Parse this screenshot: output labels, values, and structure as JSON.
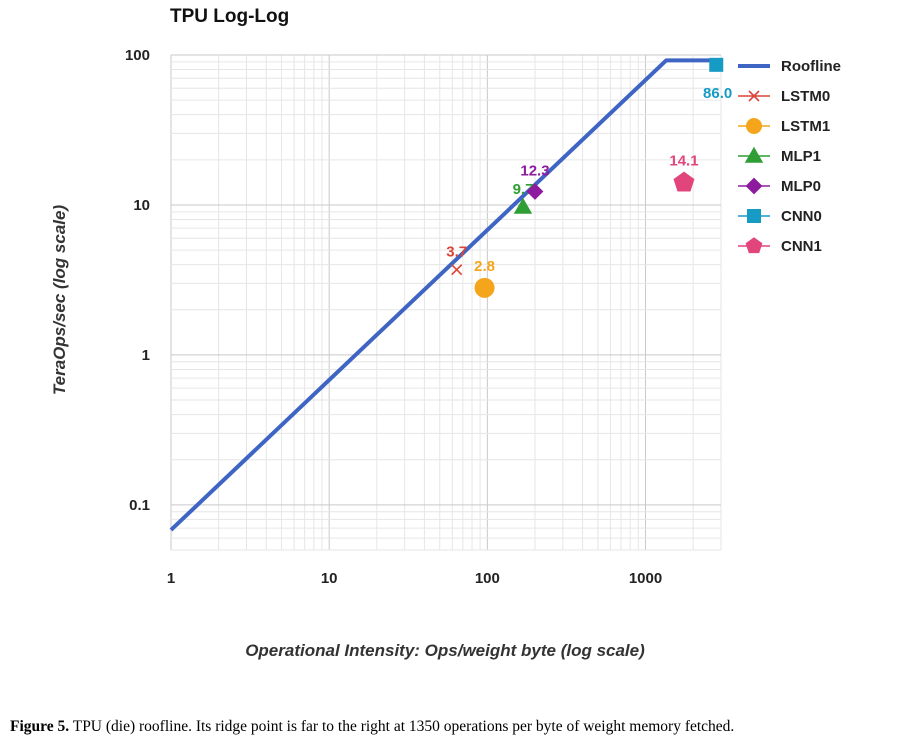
{
  "chart_data": {
    "type": "line",
    "title": "TPU Log-Log",
    "xlabel": "Operational Intensity: Ops/weight byte (log scale)",
    "ylabel": "TeraOps/sec (log scale)",
    "xscale": "log",
    "yscale": "log",
    "xlim": [
      1,
      3000
    ],
    "ylim": [
      0.05,
      100
    ],
    "xticks": [
      1,
      10,
      100,
      1000
    ],
    "xtick_labels": [
      "1",
      "10",
      "100",
      "1000"
    ],
    "yticks": [
      0.1,
      1,
      10,
      100
    ],
    "ytick_labels": [
      "0.1",
      "1",
      "10",
      "100"
    ],
    "grid": true,
    "legend_position": "right",
    "roofline": {
      "name": "Roofline",
      "color": "#3e64c4",
      "x": [
        1,
        1350,
        2800
      ],
      "y": [
        0.068,
        92,
        92
      ]
    },
    "series": [
      {
        "name": "LSTM0",
        "marker": "x",
        "color": "#db4437",
        "x": 64,
        "y": 3.7,
        "label": "3.7"
      },
      {
        "name": "LSTM1",
        "marker": "circle",
        "color": "#f4a51c",
        "x": 96,
        "y": 2.8,
        "label": "2.8"
      },
      {
        "name": "MLP1",
        "marker": "triangle",
        "color": "#2f9e35",
        "x": 168,
        "y": 9.7,
        "label": "9.7"
      },
      {
        "name": "MLP0",
        "marker": "diamond",
        "color": "#8e1aa0",
        "x": 200,
        "y": 12.3,
        "label": "12.3"
      },
      {
        "name": "CNN0",
        "marker": "square",
        "color": "#159bc4",
        "x": 2800,
        "y": 86.0,
        "label": "86.0"
      },
      {
        "name": "CNN1",
        "marker": "pentagon",
        "color": "#e2447c",
        "x": 1750,
        "y": 14.1,
        "label": "14.1"
      }
    ]
  },
  "caption": {
    "figure_label": "Figure 5.",
    "text": " TPU (die) roofline. Its ridge point is far to the right at 1350 operations per byte of weight memory fetched."
  }
}
